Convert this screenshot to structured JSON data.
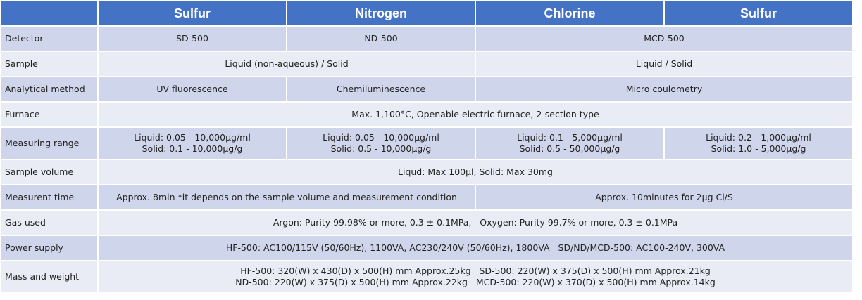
{
  "header": [
    "Sulfur",
    "Nitrogen",
    "Chlorine",
    "Sulfur"
  ],
  "rows": [
    {
      "label": "Detector",
      "cells": [
        "SD-500",
        "ND-500",
        "MCD-500"
      ]
    },
    {
      "label": "Sample",
      "cells": [
        "Liquid (non-aqueous) / Solid",
        "Liquid / Solid"
      ]
    },
    {
      "label": "Analytical method",
      "cells": [
        "UV fluorescence",
        "Chemiluminescence",
        "Micro coulometry"
      ]
    },
    {
      "label": "Furnace",
      "cells": [
        "Max. 1,100°C, Openable electric furnace, 2-section type"
      ]
    },
    {
      "label": "Measuring range",
      "cells": [
        [
          "Liquid: 0.05 - 10,000μg/ml",
          "Solid: 0.1 - 10,000μg/g"
        ],
        [
          "Liquid: 0.05 - 10,000μg/ml",
          "Solid: 0.5 - 10,000μg/g"
        ],
        [
          "Liquid: 0.1 - 5,000μg/ml",
          "Solid: 0.5 - 50,000μg/g"
        ],
        [
          "Liquid: 0.2 - 1,000μg/ml",
          "Solid: 1.0 - 5,000μg/g"
        ]
      ]
    },
    {
      "label": "Sample volume",
      "cells": [
        "Liqud: Max 100μl, Solid: Max 30mg"
      ]
    },
    {
      "label": "Measurent time",
      "cells": [
        "Approx. 8min *it depends on the sample volume and measurement condition",
        "Approx. 10minutes for 2μg Cl/S"
      ]
    },
    {
      "label": "Gas used",
      "cells": [
        "Argon: Purity 99.98% or more, 0.3 ± 0.1MPa,   Oxygen: Purity 99.7% or more, 0.3 ± 0.1MPa"
      ]
    },
    {
      "label": "Power supply",
      "cells": [
        "HF-500: AC100/115V (50/60Hz), 1100VA, AC230/240V (50/60Hz), 1800VA   SD/ND/MCD-500: AC100-240V, 300VA"
      ]
    },
    {
      "label": "Mass and weight",
      "cells": [
        [
          "HF-500: 320(W) x 430(D) x 500(H) mm Approx.25kg   SD-500: 220(W) x 375(D) x 500(H) mm Approx.21kg",
          "ND-500: 220(W) x 375(D) x 500(H) mm Approx.22kg   MCD-500: 220(W) x 370(D) x 500(H) mm Approx.14kg"
        ]
      ]
    }
  ]
}
